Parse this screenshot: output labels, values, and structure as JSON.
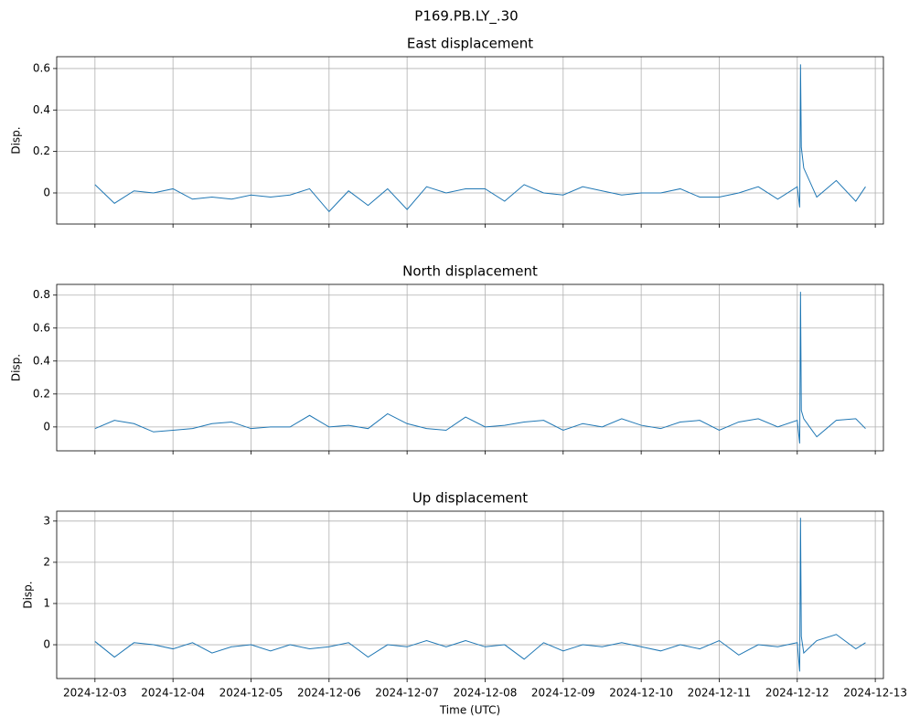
{
  "title": "P169.PB.LY_.30",
  "chart_data": [
    {
      "type": "line",
      "title": "East displacement",
      "ylabel": "Disp.",
      "color": "#1f77b4",
      "grid": true,
      "show_xtick_labels": false,
      "x": [
        "2024-12-03T00:00",
        "2024-12-03T06:00",
        "2024-12-03T12:00",
        "2024-12-03T18:00",
        "2024-12-04T00:00",
        "2024-12-04T06:00",
        "2024-12-04T12:00",
        "2024-12-04T18:00",
        "2024-12-05T00:00",
        "2024-12-05T06:00",
        "2024-12-05T12:00",
        "2024-12-05T18:00",
        "2024-12-06T00:00",
        "2024-12-06T06:00",
        "2024-12-06T12:00",
        "2024-12-06T18:00",
        "2024-12-07T00:00",
        "2024-12-07T06:00",
        "2024-12-07T12:00",
        "2024-12-07T18:00",
        "2024-12-08T00:00",
        "2024-12-08T06:00",
        "2024-12-08T12:00",
        "2024-12-08T18:00",
        "2024-12-09T00:00",
        "2024-12-09T06:00",
        "2024-12-09T12:00",
        "2024-12-09T18:00",
        "2024-12-10T00:00",
        "2024-12-10T06:00",
        "2024-12-10T12:00",
        "2024-12-10T18:00",
        "2024-12-11T00:00",
        "2024-12-11T06:00",
        "2024-12-11T12:00",
        "2024-12-11T18:00",
        "2024-12-12T00:00",
        "2024-12-12T00:45",
        "2024-12-12T01:00",
        "2024-12-12T01:15",
        "2024-12-12T02:00",
        "2024-12-12T06:00",
        "2024-12-12T12:00",
        "2024-12-12T18:00",
        "2024-12-12T21:00"
      ],
      "values": [
        0.04,
        -0.05,
        0.01,
        0.0,
        0.02,
        -0.03,
        -0.02,
        -0.03,
        -0.01,
        -0.02,
        -0.01,
        0.02,
        -0.09,
        0.01,
        -0.06,
        0.02,
        -0.08,
        0.03,
        0.0,
        0.02,
        0.02,
        -0.04,
        0.04,
        0.0,
        -0.01,
        0.03,
        0.01,
        -0.01,
        0.0,
        0.0,
        0.02,
        -0.02,
        -0.02,
        0.0,
        0.03,
        -0.03,
        0.03,
        -0.07,
        0.62,
        0.22,
        0.12,
        -0.02,
        0.06,
        -0.04,
        0.03
      ],
      "xlim": [
        "2024-12-02T12:14",
        "2024-12-13T02:30"
      ],
      "xticks": [
        "2024-12-03",
        "2024-12-04",
        "2024-12-05",
        "2024-12-06",
        "2024-12-07",
        "2024-12-08",
        "2024-12-09",
        "2024-12-10",
        "2024-12-11",
        "2024-12-12",
        "2024-12-13"
      ],
      "ylim": [
        -0.15,
        0.657
      ],
      "yticks": [
        0.0,
        0.2,
        0.4,
        0.6
      ]
    },
    {
      "type": "line",
      "title": "North displacement",
      "ylabel": "Disp.",
      "color": "#1f77b4",
      "grid": true,
      "show_xtick_labels": false,
      "x": [
        "2024-12-03T00:00",
        "2024-12-03T06:00",
        "2024-12-03T12:00",
        "2024-12-03T18:00",
        "2024-12-04T00:00",
        "2024-12-04T06:00",
        "2024-12-04T12:00",
        "2024-12-04T18:00",
        "2024-12-05T00:00",
        "2024-12-05T06:00",
        "2024-12-05T12:00",
        "2024-12-05T18:00",
        "2024-12-06T00:00",
        "2024-12-06T06:00",
        "2024-12-06T12:00",
        "2024-12-06T18:00",
        "2024-12-07T00:00",
        "2024-12-07T06:00",
        "2024-12-07T12:00",
        "2024-12-07T18:00",
        "2024-12-08T00:00",
        "2024-12-08T06:00",
        "2024-12-08T12:00",
        "2024-12-08T18:00",
        "2024-12-09T00:00",
        "2024-12-09T06:00",
        "2024-12-09T12:00",
        "2024-12-09T18:00",
        "2024-12-10T00:00",
        "2024-12-10T06:00",
        "2024-12-10T12:00",
        "2024-12-10T18:00",
        "2024-12-11T00:00",
        "2024-12-11T06:00",
        "2024-12-11T12:00",
        "2024-12-11T18:00",
        "2024-12-12T00:00",
        "2024-12-12T00:45",
        "2024-12-12T01:00",
        "2024-12-12T01:15",
        "2024-12-12T02:00",
        "2024-12-12T06:00",
        "2024-12-12T12:00",
        "2024-12-12T18:00",
        "2024-12-12T21:00"
      ],
      "values": [
        -0.01,
        0.04,
        0.02,
        -0.03,
        -0.02,
        -0.01,
        0.02,
        0.03,
        -0.01,
        0.0,
        0.0,
        0.07,
        0.0,
        0.01,
        -0.01,
        0.08,
        0.02,
        -0.01,
        -0.02,
        0.06,
        0.0,
        0.01,
        0.03,
        0.04,
        -0.02,
        0.02,
        0.0,
        0.05,
        0.01,
        -0.01,
        0.03,
        0.04,
        -0.02,
        0.03,
        0.05,
        0.0,
        0.04,
        -0.1,
        0.82,
        0.1,
        0.05,
        -0.06,
        0.04,
        0.05,
        -0.01
      ],
      "xlim": [
        "2024-12-02T12:14",
        "2024-12-13T02:30"
      ],
      "xticks": [
        "2024-12-03",
        "2024-12-04",
        "2024-12-05",
        "2024-12-06",
        "2024-12-07",
        "2024-12-08",
        "2024-12-09",
        "2024-12-10",
        "2024-12-11",
        "2024-12-12",
        "2024-12-13"
      ],
      "ylim": [
        -0.145,
        0.865
      ],
      "yticks": [
        0.0,
        0.2,
        0.4,
        0.6,
        0.8
      ]
    },
    {
      "type": "line",
      "title": "Up displacement",
      "ylabel": "Disp.",
      "xlabel": "Time (UTC)",
      "color": "#1f77b4",
      "grid": true,
      "show_xtick_labels": true,
      "x": [
        "2024-12-03T00:00",
        "2024-12-03T06:00",
        "2024-12-03T12:00",
        "2024-12-03T18:00",
        "2024-12-04T00:00",
        "2024-12-04T06:00",
        "2024-12-04T12:00",
        "2024-12-04T18:00",
        "2024-12-05T00:00",
        "2024-12-05T06:00",
        "2024-12-05T12:00",
        "2024-12-05T18:00",
        "2024-12-06T00:00",
        "2024-12-06T06:00",
        "2024-12-06T12:00",
        "2024-12-06T18:00",
        "2024-12-07T00:00",
        "2024-12-07T06:00",
        "2024-12-07T12:00",
        "2024-12-07T18:00",
        "2024-12-08T00:00",
        "2024-12-08T06:00",
        "2024-12-08T12:00",
        "2024-12-08T18:00",
        "2024-12-09T00:00",
        "2024-12-09T06:00",
        "2024-12-09T12:00",
        "2024-12-09T18:00",
        "2024-12-10T00:00",
        "2024-12-10T06:00",
        "2024-12-10T12:00",
        "2024-12-10T18:00",
        "2024-12-11T00:00",
        "2024-12-11T06:00",
        "2024-12-11T12:00",
        "2024-12-11T18:00",
        "2024-12-12T00:00",
        "2024-12-12T00:45",
        "2024-12-12T01:00",
        "2024-12-12T01:15",
        "2024-12-12T02:00",
        "2024-12-12T06:00",
        "2024-12-12T12:00",
        "2024-12-12T18:00",
        "2024-12-12T21:00"
      ],
      "values": [
        0.08,
        -0.3,
        0.05,
        0.0,
        -0.1,
        0.05,
        -0.2,
        -0.05,
        0.0,
        -0.15,
        0.0,
        -0.1,
        -0.05,
        0.05,
        -0.3,
        0.0,
        -0.05,
        0.1,
        -0.05,
        0.1,
        -0.05,
        0.0,
        -0.35,
        0.05,
        -0.15,
        0.0,
        -0.05,
        0.05,
        -0.05,
        -0.15,
        0.0,
        -0.1,
        0.1,
        -0.25,
        0.0,
        -0.05,
        0.05,
        -0.65,
        3.08,
        0.2,
        -0.2,
        0.1,
        0.25,
        -0.1,
        0.05
      ],
      "xlim": [
        "2024-12-02T12:14",
        "2024-12-13T02:30"
      ],
      "xticks": [
        "2024-12-03",
        "2024-12-04",
        "2024-12-05",
        "2024-12-06",
        "2024-12-07",
        "2024-12-08",
        "2024-12-09",
        "2024-12-10",
        "2024-12-11",
        "2024-12-12",
        "2024-12-13"
      ],
      "ylim": [
        -0.82,
        3.24
      ],
      "yticks": [
        0,
        1,
        2,
        3
      ]
    }
  ]
}
